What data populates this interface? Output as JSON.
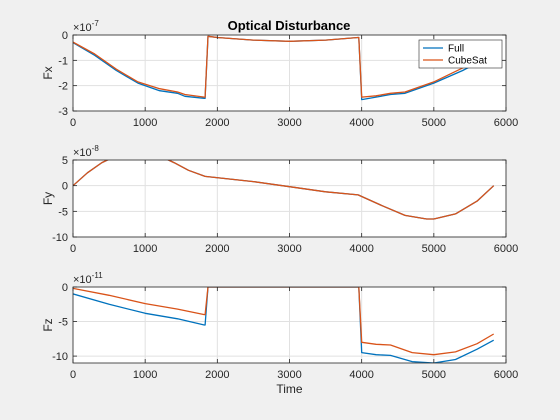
{
  "figure": {
    "title": "Optical Disturbance"
  },
  "chart_data": [
    {
      "type": "line",
      "ylabel": "Fx",
      "exponent": "-7",
      "xlim": [
        0,
        6000
      ],
      "ylim": [
        -3,
        0
      ],
      "xticks": [
        0,
        1000,
        2000,
        3000,
        4000,
        5000,
        6000
      ],
      "yticks": [
        0,
        -1,
        -2,
        -3
      ],
      "legend": {
        "position": "top-right",
        "entries": [
          "Full",
          "CubeSat"
        ]
      },
      "series": [
        {
          "name": "Full",
          "color": "#0072bd",
          "x": [
            0,
            300,
            600,
            900,
            1200,
            1450,
            1550,
            1820,
            1830,
            1870,
            2000,
            2500,
            3000,
            3500,
            3950,
            3960,
            4000,
            4200,
            4400,
            4600,
            5000,
            5400,
            5800
          ],
          "y": [
            -0.3,
            -0.8,
            -1.4,
            -1.9,
            -2.2,
            -2.3,
            -2.42,
            -2.5,
            -2.5,
            -0.05,
            -0.1,
            -0.2,
            -0.25,
            -0.2,
            -0.1,
            -0.1,
            -2.55,
            -2.45,
            -2.35,
            -2.3,
            -1.9,
            -1.4,
            -0.8
          ]
        },
        {
          "name": "CubeSat",
          "color": "#d95319",
          "x": [
            0,
            300,
            600,
            900,
            1200,
            1450,
            1550,
            1820,
            1830,
            1870,
            2000,
            2500,
            3000,
            3500,
            3950,
            3960,
            4000,
            4200,
            4400,
            4600,
            5000,
            5400,
            5800
          ],
          "y": [
            -0.28,
            -0.75,
            -1.35,
            -1.85,
            -2.12,
            -2.25,
            -2.35,
            -2.45,
            -2.45,
            -0.05,
            -0.1,
            -0.2,
            -0.25,
            -0.2,
            -0.1,
            -0.1,
            -2.45,
            -2.4,
            -2.3,
            -2.25,
            -1.85,
            -1.3,
            -0.75
          ]
        }
      ]
    },
    {
      "type": "line",
      "ylabel": "Fy",
      "exponent": "-8",
      "xlim": [
        0,
        6000
      ],
      "ylim": [
        -10,
        5
      ],
      "xticks": [
        0,
        1000,
        2000,
        3000,
        4000,
        5000,
        6000
      ],
      "yticks": [
        5,
        0,
        -5,
        -10
      ],
      "series": [
        {
          "name": "Full",
          "color": "#0072bd",
          "x": [
            0,
            200,
            400,
            600,
            800,
            1000,
            1200,
            1400,
            1600,
            1830,
            2500,
            3000,
            3500,
            3950,
            4300,
            4600,
            4900,
            5000,
            5300,
            5600,
            5830
          ],
          "y": [
            0,
            2.5,
            4.5,
            5.8,
            6.4,
            6.5,
            5.8,
            4.5,
            3,
            1.8,
            0.8,
            -0.2,
            -1.2,
            -1.8,
            -4,
            -5.8,
            -6.5,
            -6.5,
            -5.5,
            -3,
            0
          ]
        },
        {
          "name": "CubeSat",
          "color": "#d95319",
          "x": [
            0,
            200,
            400,
            600,
            800,
            1000,
            1200,
            1400,
            1600,
            1830,
            2500,
            3000,
            3500,
            3950,
            4300,
            4600,
            4900,
            5000,
            5300,
            5600,
            5830
          ],
          "y": [
            0,
            2.5,
            4.5,
            5.8,
            6.4,
            6.5,
            5.8,
            4.5,
            3,
            1.8,
            0.8,
            -0.2,
            -1.2,
            -1.8,
            -4,
            -5.8,
            -6.5,
            -6.5,
            -5.5,
            -3,
            0
          ]
        }
      ]
    },
    {
      "type": "line",
      "ylabel": "Fz",
      "exponent": "-11",
      "xlabel": "Time",
      "xlim": [
        0,
        6000
      ],
      "ylim": [
        -11,
        0
      ],
      "xticks": [
        0,
        1000,
        2000,
        3000,
        4000,
        5000,
        6000
      ],
      "yticks": [
        0,
        -5,
        -10
      ],
      "series": [
        {
          "name": "Full",
          "color": "#0072bd",
          "x": [
            0,
            500,
            1000,
            1450,
            1820,
            1830,
            1870,
            3950,
            3960,
            4000,
            4200,
            4400,
            4700,
            5000,
            5300,
            5600,
            5830
          ],
          "y": [
            -1,
            -2.5,
            -3.8,
            -4.6,
            -5.5,
            -5.5,
            0,
            0,
            0,
            -9.5,
            -9.8,
            -9.9,
            -10.8,
            -11,
            -10.5,
            -9,
            -7.7
          ]
        },
        {
          "name": "CubeSat",
          "color": "#d95319",
          "x": [
            0,
            500,
            1000,
            1450,
            1820,
            1830,
            1870,
            3950,
            3960,
            4000,
            4200,
            4400,
            4700,
            5000,
            5300,
            5600,
            5830
          ],
          "y": [
            -0.2,
            -1.2,
            -2.4,
            -3.2,
            -4,
            -4,
            0,
            0,
            0,
            -8,
            -8.3,
            -8.4,
            -9.5,
            -9.8,
            -9.4,
            -8.2,
            -6.8
          ]
        }
      ]
    }
  ]
}
